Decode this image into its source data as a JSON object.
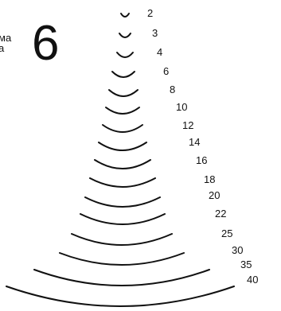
{
  "header": {
    "line1": "ма",
    "line2": "а",
    "sweep_number": "6"
  },
  "arcs": [
    {
      "label": "2"
    },
    {
      "label": "3"
    },
    {
      "label": "4"
    },
    {
      "label": "6"
    },
    {
      "label": "8"
    },
    {
      "label": "10"
    },
    {
      "label": "12"
    },
    {
      "label": "14"
    },
    {
      "label": "16"
    },
    {
      "label": "18"
    },
    {
      "label": "20"
    },
    {
      "label": "22"
    },
    {
      "label": "25"
    },
    {
      "label": "30"
    },
    {
      "label": "35"
    },
    {
      "label": "40"
    }
  ]
}
